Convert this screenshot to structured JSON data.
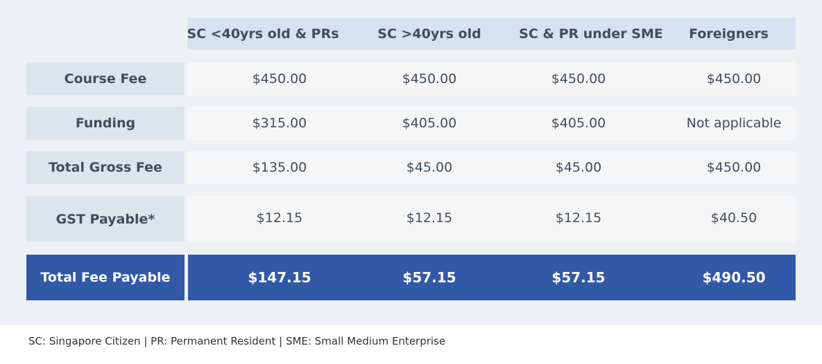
{
  "table": {
    "columns": [
      "SC <40yrs old & PRs",
      "SC >40yrs old",
      "SC & PR under SME",
      "Foreigners"
    ],
    "rows": [
      {
        "label": "Course Fee",
        "values": [
          "$450.00",
          "$450.00",
          "$450.00",
          "$450.00"
        ]
      },
      {
        "label": "Funding",
        "values": [
          "$315.00",
          "$405.00",
          "$405.00",
          "Not applicable"
        ]
      },
      {
        "label": "Total Gross Fee",
        "values": [
          "$135.00",
          "$45.00",
          "$45.00",
          "$450.00"
        ]
      },
      {
        "label": "GST Payable*",
        "values": [
          "$12.15",
          "$12.15",
          "$12.15",
          "$40.50"
        ]
      }
    ],
    "total": {
      "label": "Total Fee Payable",
      "values": [
        "$147.15",
        "$57.15",
        "$57.15",
        "$490.50"
      ]
    }
  },
  "footnote": "SC: Singapore Citizen | PR: Permanent Resident | SME: Small Medium Enterprise",
  "colors": {
    "panel_background": "#eef1f4",
    "header_background": "#d7e2f1",
    "row_label_background": "#dce5ee",
    "cell_background": "#f6f6f6",
    "total_background": "#3258a8",
    "text": "#3f4d5c"
  }
}
